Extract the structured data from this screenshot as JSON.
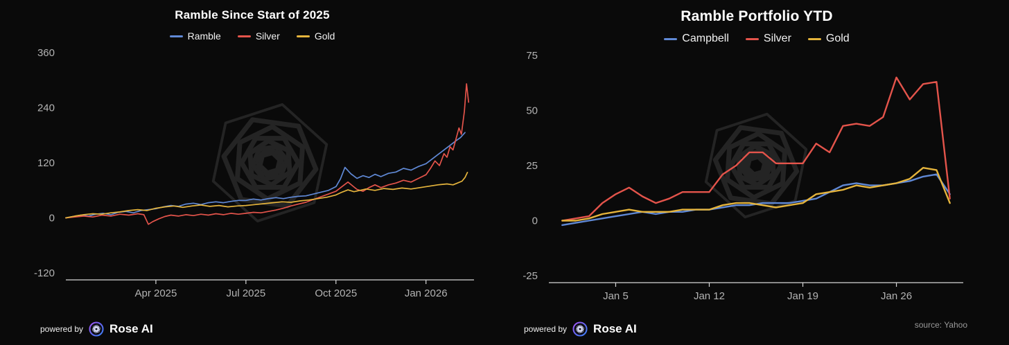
{
  "colors": {
    "background": "#0a0a0a",
    "text": "#ffffff",
    "axis_label": "#b3b3b3",
    "axis_line": "#d6d6d6",
    "watermark": "#242424",
    "source_text": "#9a9a9a",
    "brand_gradient_start": "#a855f7",
    "brand_gradient_mid": "#6366f1",
    "brand_gradient_end": "#3b82f6"
  },
  "footer": {
    "powered_by": "powered by",
    "brand": "Rose AI",
    "source": "source: Yahoo"
  },
  "chart_data": [
    {
      "type": "line",
      "title": "Ramble Since Start of 2025",
      "xlabel": "",
      "ylabel": "",
      "x_unit": "months since Jan 2025",
      "xlim": [
        0,
        13.6
      ],
      "ylim": [
        -120,
        360
      ],
      "y_ticks": [
        360,
        240,
        120,
        0,
        -120
      ],
      "x_ticks": [
        {
          "pos": 3,
          "label": "Apr 2025"
        },
        {
          "pos": 6,
          "label": "Jul 2025"
        },
        {
          "pos": 9,
          "label": "Oct 2025"
        },
        {
          "pos": 12,
          "label": "Jan 2026"
        }
      ],
      "grid": false,
      "legend_position": "top",
      "series": [
        {
          "name": "Ramble",
          "color": "#6089d6",
          "points": [
            [
              0,
              0
            ],
            [
              0.25,
              3
            ],
            [
              0.5,
              6
            ],
            [
              0.75,
              4
            ],
            [
              1,
              8
            ],
            [
              1.25,
              10
            ],
            [
              1.5,
              7
            ],
            [
              1.75,
              12
            ],
            [
              2,
              14
            ],
            [
              2.25,
              11
            ],
            [
              2.5,
              16
            ],
            [
              2.75,
              18
            ],
            [
              3,
              20
            ],
            [
              3.25,
              24
            ],
            [
              3.5,
              27
            ],
            [
              3.75,
              25
            ],
            [
              4,
              30
            ],
            [
              4.25,
              32
            ],
            [
              4.5,
              29
            ],
            [
              4.75,
              33
            ],
            [
              5,
              35
            ],
            [
              5.25,
              33
            ],
            [
              5.5,
              36
            ],
            [
              5.75,
              38
            ],
            [
              6,
              38
            ],
            [
              6.25,
              41
            ],
            [
              6.5,
              39
            ],
            [
              6.75,
              42
            ],
            [
              7,
              44
            ],
            [
              7.25,
              42
            ],
            [
              7.5,
              45
            ],
            [
              7.75,
              47
            ],
            [
              8,
              48
            ],
            [
              8.25,
              52
            ],
            [
              8.5,
              56
            ],
            [
              8.75,
              60
            ],
            [
              9,
              68
            ],
            [
              9.15,
              85
            ],
            [
              9.3,
              110
            ],
            [
              9.5,
              96
            ],
            [
              9.7,
              86
            ],
            [
              9.9,
              92
            ],
            [
              10.1,
              88
            ],
            [
              10.3,
              95
            ],
            [
              10.5,
              90
            ],
            [
              10.75,
              97
            ],
            [
              11,
              100
            ],
            [
              11.25,
              108
            ],
            [
              11.5,
              104
            ],
            [
              11.75,
              112
            ],
            [
              12,
              118
            ],
            [
              12.2,
              128
            ],
            [
              12.4,
              138
            ],
            [
              12.6,
              148
            ],
            [
              12.8,
              158
            ],
            [
              13,
              168
            ],
            [
              13.15,
              175
            ],
            [
              13.3,
              186
            ]
          ]
        },
        {
          "name": "Silver",
          "color": "#e4544b",
          "points": [
            [
              0,
              0
            ],
            [
              0.3,
              2
            ],
            [
              0.6,
              4
            ],
            [
              0.9,
              2
            ],
            [
              1.2,
              6
            ],
            [
              1.5,
              4
            ],
            [
              1.8,
              8
            ],
            [
              2.1,
              6
            ],
            [
              2.4,
              9
            ],
            [
              2.6,
              7
            ],
            [
              2.75,
              -14
            ],
            [
              2.9,
              -8
            ],
            [
              3.1,
              -2
            ],
            [
              3.3,
              3
            ],
            [
              3.5,
              6
            ],
            [
              3.75,
              4
            ],
            [
              4,
              7
            ],
            [
              4.25,
              5
            ],
            [
              4.5,
              8
            ],
            [
              4.75,
              6
            ],
            [
              5,
              9
            ],
            [
              5.25,
              7
            ],
            [
              5.5,
              10
            ],
            [
              5.75,
              8
            ],
            [
              6,
              10
            ],
            [
              6.25,
              12
            ],
            [
              6.5,
              11
            ],
            [
              6.75,
              14
            ],
            [
              7,
              17
            ],
            [
              7.25,
              21
            ],
            [
              7.5,
              26
            ],
            [
              7.75,
              30
            ],
            [
              8,
              34
            ],
            [
              8.25,
              40
            ],
            [
              8.5,
              46
            ],
            [
              8.75,
              52
            ],
            [
              9,
              58
            ],
            [
              9.2,
              68
            ],
            [
              9.4,
              78
            ],
            [
              9.55,
              70
            ],
            [
              9.7,
              62
            ],
            [
              9.9,
              58
            ],
            [
              10.1,
              66
            ],
            [
              10.3,
              72
            ],
            [
              10.5,
              66
            ],
            [
              10.75,
              72
            ],
            [
              11,
              76
            ],
            [
              11.25,
              82
            ],
            [
              11.5,
              78
            ],
            [
              11.75,
              86
            ],
            [
              12,
              94
            ],
            [
              12.15,
              108
            ],
            [
              12.3,
              124
            ],
            [
              12.45,
              114
            ],
            [
              12.6,
              140
            ],
            [
              12.7,
              132
            ],
            [
              12.8,
              155
            ],
            [
              12.9,
              148
            ],
            [
              13,
              172
            ],
            [
              13.1,
              196
            ],
            [
              13.18,
              182
            ],
            [
              13.28,
              232
            ],
            [
              13.35,
              292
            ],
            [
              13.42,
              252
            ]
          ]
        },
        {
          "name": "Gold",
          "color": "#e5b43c",
          "points": [
            [
              0,
              0
            ],
            [
              0.3,
              4
            ],
            [
              0.6,
              7
            ],
            [
              0.9,
              9
            ],
            [
              1.2,
              8
            ],
            [
              1.5,
              11
            ],
            [
              1.8,
              13
            ],
            [
              2.1,
              16
            ],
            [
              2.4,
              18
            ],
            [
              2.7,
              16
            ],
            [
              3,
              21
            ],
            [
              3.3,
              24
            ],
            [
              3.6,
              26
            ],
            [
              3.9,
              23
            ],
            [
              4.2,
              26
            ],
            [
              4.5,
              28
            ],
            [
              4.8,
              25
            ],
            [
              5.1,
              27
            ],
            [
              5.4,
              24
            ],
            [
              5.7,
              26
            ],
            [
              6,
              27
            ],
            [
              6.3,
              29
            ],
            [
              6.6,
              31
            ],
            [
              6.9,
              33
            ],
            [
              7.2,
              35
            ],
            [
              7.5,
              34
            ],
            [
              7.8,
              37
            ],
            [
              8.1,
              39
            ],
            [
              8.4,
              42
            ],
            [
              8.7,
              45
            ],
            [
              9,
              50
            ],
            [
              9.2,
              56
            ],
            [
              9.4,
              61
            ],
            [
              9.6,
              57
            ],
            [
              9.8,
              60
            ],
            [
              10,
              63
            ],
            [
              10.3,
              60
            ],
            [
              10.6,
              64
            ],
            [
              10.9,
              62
            ],
            [
              11.2,
              65
            ],
            [
              11.5,
              63
            ],
            [
              11.8,
              66
            ],
            [
              12.1,
              69
            ],
            [
              12.4,
              72
            ],
            [
              12.7,
              74
            ],
            [
              12.9,
              72
            ],
            [
              13.05,
              76
            ],
            [
              13.2,
              80
            ],
            [
              13.3,
              88
            ],
            [
              13.38,
              99
            ]
          ]
        }
      ]
    },
    {
      "type": "line",
      "title": "Ramble Portfolio YTD",
      "xlabel": "",
      "ylabel": "",
      "x_unit": "day of January",
      "xlim": [
        0,
        31
      ],
      "ylim": [
        -25,
        75
      ],
      "y_ticks": [
        75,
        50,
        25,
        0,
        -25
      ],
      "x_ticks": [
        {
          "pos": 5,
          "label": "Jan 5"
        },
        {
          "pos": 12,
          "label": "Jan 12"
        },
        {
          "pos": 19,
          "label": "Jan 19"
        },
        {
          "pos": 26,
          "label": "Jan 26"
        }
      ],
      "grid": false,
      "legend_position": "top",
      "series": [
        {
          "name": "Campbell",
          "color": "#6089d6",
          "points": [
            [
              1,
              -2
            ],
            [
              2,
              -1
            ],
            [
              3,
              0
            ],
            [
              4,
              1
            ],
            [
              5,
              2
            ],
            [
              6,
              3
            ],
            [
              7,
              4
            ],
            [
              8,
              3
            ],
            [
              9,
              4
            ],
            [
              10,
              4
            ],
            [
              11,
              5
            ],
            [
              12,
              5
            ],
            [
              13,
              6
            ],
            [
              14,
              7
            ],
            [
              15,
              7
            ],
            [
              16,
              8
            ],
            [
              17,
              8
            ],
            [
              18,
              8
            ],
            [
              19,
              9
            ],
            [
              20,
              10
            ],
            [
              21,
              13
            ],
            [
              22,
              16
            ],
            [
              23,
              17
            ],
            [
              24,
              16
            ],
            [
              25,
              16
            ],
            [
              26,
              17
            ],
            [
              27,
              18
            ],
            [
              28,
              20
            ],
            [
              29,
              21
            ],
            [
              30,
              12
            ]
          ]
        },
        {
          "name": "Silver",
          "color": "#e4544b",
          "points": [
            [
              1,
              0
            ],
            [
              2,
              1
            ],
            [
              3,
              2
            ],
            [
              4,
              8
            ],
            [
              5,
              12
            ],
            [
              6,
              15
            ],
            [
              7,
              11
            ],
            [
              8,
              8
            ],
            [
              9,
              10
            ],
            [
              10,
              13
            ],
            [
              11,
              13
            ],
            [
              12,
              13
            ],
            [
              13,
              21
            ],
            [
              14,
              25
            ],
            [
              15,
              31
            ],
            [
              16,
              31
            ],
            [
              17,
              26
            ],
            [
              18,
              26
            ],
            [
              19,
              26
            ],
            [
              20,
              35
            ],
            [
              21,
              31
            ],
            [
              22,
              43
            ],
            [
              23,
              44
            ],
            [
              24,
              43
            ],
            [
              25,
              47
            ],
            [
              26,
              65
            ],
            [
              27,
              55
            ],
            [
              28,
              62
            ],
            [
              29,
              63
            ],
            [
              30,
              10
            ]
          ]
        },
        {
          "name": "Gold",
          "color": "#e5b43c",
          "points": [
            [
              1,
              0
            ],
            [
              2,
              0
            ],
            [
              3,
              1
            ],
            [
              4,
              3
            ],
            [
              5,
              4
            ],
            [
              6,
              5
            ],
            [
              7,
              4
            ],
            [
              8,
              4
            ],
            [
              9,
              4
            ],
            [
              10,
              5
            ],
            [
              11,
              5
            ],
            [
              12,
              5
            ],
            [
              13,
              7
            ],
            [
              14,
              8
            ],
            [
              15,
              8
            ],
            [
              16,
              7
            ],
            [
              17,
              6
            ],
            [
              18,
              7
            ],
            [
              19,
              8
            ],
            [
              20,
              12
            ],
            [
              21,
              13
            ],
            [
              22,
              14
            ],
            [
              23,
              16
            ],
            [
              24,
              15
            ],
            [
              25,
              16
            ],
            [
              26,
              17
            ],
            [
              27,
              19
            ],
            [
              28,
              24
            ],
            [
              29,
              23
            ],
            [
              30,
              8
            ]
          ]
        }
      ]
    }
  ]
}
